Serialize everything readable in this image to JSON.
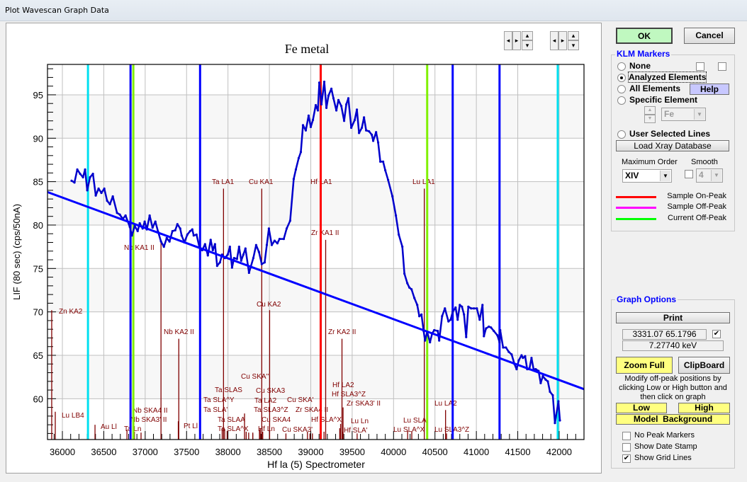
{
  "window": {
    "title": "Plot Wavescan Graph Data"
  },
  "chart_data": {
    "type": "line",
    "title": "Fe metal",
    "xlabel": "Hf la (5) Spectrometer",
    "ylabel": "LIF (80 sec) (cps/50nA)",
    "xlim": [
      35820,
      42300
    ],
    "ylim": [
      55.3,
      98.5
    ],
    "xticks": [
      36000,
      36500,
      37000,
      37500,
      38000,
      38500,
      39000,
      39500,
      40000,
      40500,
      41000,
      41500,
      42000
    ],
    "yticks": [
      60,
      65,
      70,
      75,
      80,
      85,
      90,
      95
    ],
    "grid": true,
    "series": [
      {
        "color": "#0000cc",
        "points": [
          [
            36111,
            85.1
          ],
          [
            36146,
            84.9
          ],
          [
            36180,
            86.4
          ],
          [
            36214,
            85.9
          ],
          [
            36249,
            85.5
          ],
          [
            36274,
            86.4
          ],
          [
            36300,
            84.0
          ],
          [
            36334,
            85.5
          ],
          [
            36369,
            85.9
          ],
          [
            36403,
            83.4
          ],
          [
            36437,
            84.2
          ],
          [
            36471,
            83.7
          ],
          [
            36506,
            84.2
          ],
          [
            36540,
            82.8
          ],
          [
            36574,
            82.4
          ],
          [
            36609,
            83.3
          ],
          [
            36660,
            81.4
          ],
          [
            36694,
            81.2
          ],
          [
            36729,
            80.7
          ],
          [
            36763,
            81.1
          ],
          [
            36814,
            79.8
          ],
          [
            36840,
            78.8
          ],
          [
            36874,
            79.9
          ],
          [
            36909,
            79.3
          ],
          [
            36934,
            80.2
          ],
          [
            36969,
            79.6
          ],
          [
            36994,
            80.4
          ],
          [
            37020,
            79.5
          ],
          [
            37054,
            81.1
          ],
          [
            37089,
            79.7
          ],
          [
            37123,
            80.4
          ],
          [
            37157,
            79.2
          ],
          [
            37191,
            78.1
          ],
          [
            37226,
            77.5
          ],
          [
            37260,
            78.5
          ],
          [
            37294,
            78.1
          ],
          [
            37329,
            79.3
          ],
          [
            37363,
            79.4
          ],
          [
            37389,
            80.1
          ],
          [
            37423,
            79.6
          ],
          [
            37440,
            78.8
          ],
          [
            37474,
            78.0
          ],
          [
            37509,
            78.9
          ],
          [
            37543,
            79.3
          ],
          [
            37569,
            79.5
          ],
          [
            37586,
            78.8
          ],
          [
            37620,
            78.9
          ],
          [
            37654,
            77.5
          ],
          [
            37689,
            77.1
          ],
          [
            37723,
            77.8
          ],
          [
            37757,
            76.5
          ],
          [
            37791,
            78.3
          ],
          [
            37817,
            77.1
          ],
          [
            37843,
            77.8
          ],
          [
            37869,
            75.3
          ],
          [
            37903,
            75.7
          ],
          [
            37929,
            76.6
          ],
          [
            37963,
            76.2
          ],
          [
            37997,
            76.6
          ],
          [
            38023,
            77.5
          ],
          [
            38049,
            75.1
          ],
          [
            38074,
            76.2
          ],
          [
            38109,
            76.1
          ],
          [
            38134,
            77.5
          ],
          [
            38160,
            75.9
          ],
          [
            38186,
            76.6
          ],
          [
            38211,
            77.3
          ],
          [
            38254,
            74.5
          ],
          [
            38306,
            76.2
          ],
          [
            38340,
            77.7
          ],
          [
            38374,
            76.9
          ],
          [
            38408,
            75.5
          ],
          [
            38443,
            75.7
          ],
          [
            38469,
            77.7
          ],
          [
            38494,
            79.6
          ],
          [
            38529,
            77.7
          ],
          [
            38563,
            78.2
          ],
          [
            38597,
            77.9
          ],
          [
            38623,
            78.4
          ],
          [
            38674,
            78.4
          ],
          [
            38709,
            79.6
          ],
          [
            38751,
            80.5
          ],
          [
            38794,
            85.3
          ],
          [
            38820,
            86.4
          ],
          [
            38854,
            87.7
          ],
          [
            38880,
            88.4
          ],
          [
            38906,
            91.5
          ],
          [
            38940,
            90.9
          ],
          [
            38974,
            92.6
          ],
          [
            39000,
            91.3
          ],
          [
            39026,
            92.1
          ],
          [
            39060,
            93.8
          ],
          [
            39086,
            93.2
          ],
          [
            39103,
            96.4
          ],
          [
            39129,
            93.9
          ],
          [
            39163,
            96.5
          ],
          [
            39189,
            93.5
          ],
          [
            39214,
            94.9
          ],
          [
            39249,
            95.7
          ],
          [
            39274,
            94.6
          ],
          [
            39309,
            93.2
          ],
          [
            39334,
            94.4
          ],
          [
            39369,
            93.7
          ],
          [
            39403,
            92.0
          ],
          [
            39429,
            93.9
          ],
          [
            39454,
            94.6
          ],
          [
            39489,
            91.2
          ],
          [
            39531,
            92.1
          ],
          [
            39557,
            93.3
          ],
          [
            39583,
            90.6
          ],
          [
            39617,
            91.2
          ],
          [
            39643,
            92.4
          ],
          [
            39669,
            90.9
          ],
          [
            39703,
            90.8
          ],
          [
            39737,
            90.4
          ],
          [
            39754,
            89.7
          ],
          [
            39789,
            90.7
          ],
          [
            39814,
            89.5
          ],
          [
            39840,
            87.3
          ],
          [
            39874,
            87.3
          ],
          [
            39900,
            86.3
          ],
          [
            39934,
            85.2
          ],
          [
            39986,
            83.3
          ],
          [
            40028,
            81.1
          ],
          [
            40063,
            78.9
          ],
          [
            40106,
            77.5
          ],
          [
            40131,
            74.4
          ],
          [
            40166,
            73.3
          ],
          [
            40191,
            72.8
          ],
          [
            40217,
            72.6
          ],
          [
            40251,
            71.6
          ],
          [
            40286,
            70.8
          ],
          [
            40311,
            69.5
          ],
          [
            40337,
            69.7
          ],
          [
            40363,
            67.8
          ],
          [
            40380,
            66.7
          ],
          [
            40406,
            67.7
          ],
          [
            40440,
            66.5
          ],
          [
            40466,
            67.5
          ],
          [
            40491,
            67.9
          ],
          [
            40534,
            67.8
          ],
          [
            40551,
            66.7
          ],
          [
            40586,
            69.5
          ],
          [
            40620,
            70.4
          ],
          [
            40663,
            68.9
          ],
          [
            40689,
            69.1
          ],
          [
            40714,
            70.0
          ],
          [
            40749,
            70.5
          ],
          [
            40774,
            69.1
          ],
          [
            40800,
            70.8
          ],
          [
            40826,
            70.6
          ],
          [
            40851,
            69.7
          ],
          [
            40877,
            67.1
          ],
          [
            40903,
            70.6
          ],
          [
            40937,
            70.4
          ],
          [
            40971,
            70.4
          ],
          [
            41006,
            70.4
          ],
          [
            41040,
            69.1
          ],
          [
            41074,
            70.8
          ],
          [
            41091,
            67.2
          ],
          [
            41117,
            68.1
          ],
          [
            41151,
            68.3
          ],
          [
            41177,
            68.2
          ],
          [
            41211,
            67.8
          ],
          [
            41254,
            67.3
          ],
          [
            41280,
            66.5
          ],
          [
            41288,
            67.9
          ],
          [
            41323,
            65.9
          ],
          [
            41357,
            65.9
          ],
          [
            41391,
            65.4
          ],
          [
            41426,
            65.1
          ],
          [
            41460,
            64.0
          ],
          [
            41486,
            63.4
          ],
          [
            41511,
            64.4
          ],
          [
            41546,
            65.0
          ],
          [
            41563,
            64.7
          ],
          [
            41589,
            64.9
          ],
          [
            41614,
            63.4
          ],
          [
            41640,
            63.4
          ],
          [
            41666,
            64.7
          ],
          [
            41691,
            63.4
          ],
          [
            41717,
            63.4
          ],
          [
            41751,
            63.2
          ],
          [
            41777,
            61.8
          ],
          [
            41803,
            62.6
          ],
          [
            41837,
            62.2
          ],
          [
            41863,
            62.0
          ],
          [
            41889,
            60.8
          ],
          [
            41923,
            60.4
          ],
          [
            41949,
            57.2
          ],
          [
            41991,
            59.7
          ],
          [
            42009,
            57.5
          ]
        ]
      },
      {
        "color": "#0000ff",
        "kind": "background-model",
        "points": [
          [
            35820,
            83.8
          ],
          [
            42300,
            61.1
          ]
        ]
      }
    ],
    "vertical_markers": [
      {
        "x": 36309,
        "color": "#00e0f0"
      },
      {
        "x": 41983,
        "color": "#00e0f0"
      },
      {
        "x": 36823,
        "color": "#0000ff"
      },
      {
        "x": 37663,
        "color": "#0000ff"
      },
      {
        "x": 40714,
        "color": "#0000ff"
      },
      {
        "x": 41280,
        "color": "#0000ff"
      },
      {
        "x": 36857,
        "color": "#80f000"
      },
      {
        "x": 40406,
        "color": "#80f000"
      },
      {
        "x": 39120,
        "color": "#ff0000"
      }
    ],
    "klm_markers": [
      {
        "label": "Zn KA2",
        "x": 35871,
        "y_top": 70.2
      },
      {
        "label": "Lu LB4",
        "x": 35914,
        "y_top": 58.5
      },
      {
        "label": "Au Ll",
        "x": 36394,
        "y_top": 57.0
      },
      {
        "label": "Ta Ln",
        "x": 36780,
        "y_top": 56.4
      },
      {
        "label": "Nb SKA4 II",
        "x": 36870,
        "y_top": 56.2
      },
      {
        "label": "Nb SKA3' II",
        "x": 36950,
        "y_top": 56.1
      },
      {
        "label": "Nb KA1 II",
        "x": 37191,
        "y_top": 78.3
      },
      {
        "label": "Nb KA2 II",
        "x": 37406,
        "y_top": 66.9
      },
      {
        "label": "Pt Ll",
        "x": 37400,
        "y_top": 57.4
      },
      {
        "label": "Ta LA1",
        "x": 37946,
        "y_top": 84.2
      },
      {
        "label": "Ta SLAS",
        "x": 37960,
        "y_top": 56.5
      },
      {
        "label": "Ta SLA^Y",
        "x": 37990,
        "y_top": 56.3
      },
      {
        "label": "Ta SLA'",
        "x": 37930,
        "y_top": 56.6
      },
      {
        "label": "Ta SLAA",
        "x": 38200,
        "y_top": 58.3
      },
      {
        "label": "Ta SLA^X",
        "x": 38220,
        "y_top": 56.2
      },
      {
        "label": "Cu SKA''",
        "x": 38250,
        "y_top": 56.1
      },
      {
        "label": "Cu SKA3",
        "x": 38300,
        "y_top": 56.1
      },
      {
        "label": "Ta LA2",
        "x": 38390,
        "y_top": 56.6
      },
      {
        "label": "Ta SLA3^Z",
        "x": 38380,
        "y_top": 56.4
      },
      {
        "label": "Cu SKA4",
        "x": 38420,
        "y_top": 56.2
      },
      {
        "label": "Hf Ln",
        "x": 38700,
        "y_top": 56.0
      },
      {
        "label": "Cu SKA3'",
        "x": 38960,
        "y_top": 56.2
      },
      {
        "label": "Cu KA1",
        "x": 38408,
        "y_top": 84.2
      },
      {
        "label": "Cu KA2",
        "x": 38503,
        "y_top": 70.2
      },
      {
        "label": "Cu SKA'",
        "x": 38990,
        "y_top": 56.0
      },
      {
        "label": "Zr SKA4 II",
        "x": 39020,
        "y_top": 56.0
      },
      {
        "label": "Hf LA1",
        "x": 39120,
        "y_top": 84.2
      },
      {
        "label": "Zr KA1 II",
        "x": 39180,
        "y_top": 78.3
      },
      {
        "label": "Hf SLA^X",
        "x": 39160,
        "y_top": 56.2
      },
      {
        "label": "Hf LA2",
        "x": 39360,
        "y_top": 57.1
      },
      {
        "label": "Hf SLA3^Z",
        "x": 39350,
        "y_top": 56.6
      },
      {
        "label": "Zr KA2 II",
        "x": 39377,
        "y_top": 66.9
      },
      {
        "label": "Zr SKA3' II",
        "x": 39390,
        "y_top": 59.0
      },
      {
        "label": "Lu Ln",
        "x": 39560,
        "y_top": 56.0
      },
      {
        "label": "Hf SLA'",
        "x": 39380,
        "y_top": 56.2
      },
      {
        "label": "Lu LA1",
        "x": 40371,
        "y_top": 84.2
      },
      {
        "label": "Lu SLA'",
        "x": 40220,
        "y_top": 56.2
      },
      {
        "label": "Lu SLA^X",
        "x": 40170,
        "y_top": 56.3
      },
      {
        "label": "Lu LA2",
        "x": 40628,
        "y_top": 58.7
      },
      {
        "label": "Lu SLA3^Z",
        "x": 40640,
        "y_top": 56.0
      }
    ]
  },
  "scroll_controls": {
    "left": "◂",
    "right": "▸",
    "up": "▴",
    "down": "▾"
  },
  "panel": {
    "ok": "OK",
    "cancel": "Cancel",
    "klm": {
      "title": "KLM Markers",
      "none": "None",
      "analyzed": "Analyzed Elements",
      "all": "All Elements",
      "help": "Help",
      "specific": "Specific Element",
      "element": "Fe",
      "user_lines": "User Selected Lines",
      "load_db": "Load Xray Database",
      "max_order_label": "Maximum Order",
      "max_order": "XIV",
      "smooth_label": "Smooth",
      "smooth": "4",
      "legend": [
        {
          "label": "Sample On-Peak",
          "color": "#ff0000"
        },
        {
          "label": "Sample Off-Peak",
          "color": "#ff00ff"
        },
        {
          "label": "Current Off-Peak",
          "color": "#00ff00"
        }
      ]
    },
    "graph": {
      "title": "Graph Options",
      "print": "Print",
      "readout": "3331.07  65.1796",
      "kev": "7.27740 keV",
      "zoom_full": "Zoom Full",
      "clipboard": "ClipBoard",
      "hint1": "Modify off-peak positions by",
      "hint2": "clicking Low or High button and",
      "hint3": "then click on graph",
      "low": "Low",
      "high": "High",
      "model_bg": "Model  Background",
      "no_peak": "No Peak Markers",
      "date_stamp": "Show Date Stamp",
      "grid_lines": "Show Grid Lines"
    }
  }
}
